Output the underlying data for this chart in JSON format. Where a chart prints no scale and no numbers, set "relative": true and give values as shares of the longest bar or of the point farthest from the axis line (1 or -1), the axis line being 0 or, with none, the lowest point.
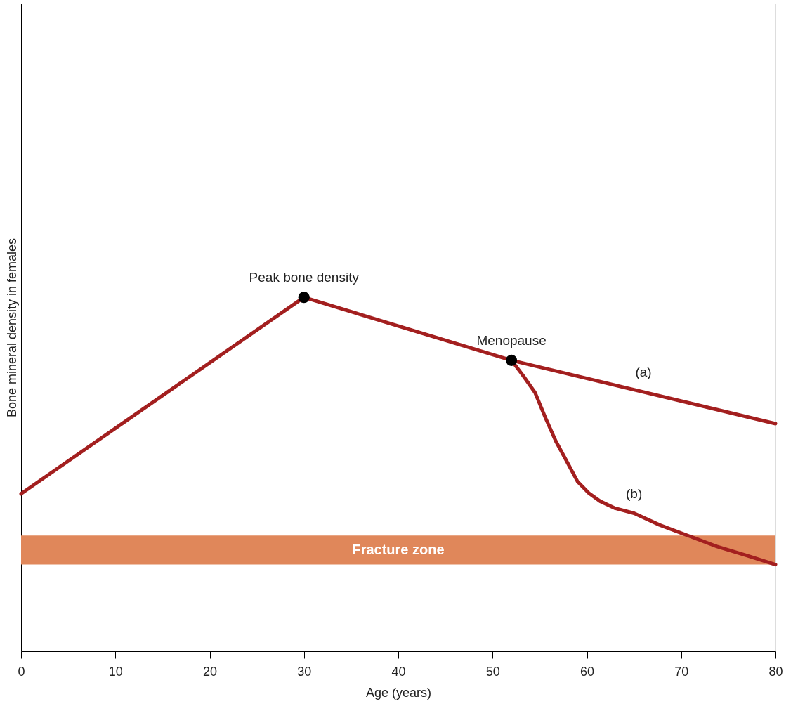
{
  "chart_data": {
    "type": "line",
    "xlabel": "Age (years)",
    "ylabel": "Bone mineral density in females",
    "relative": true,
    "xlim": [
      0,
      80
    ],
    "xticks": [
      0,
      10,
      20,
      30,
      40,
      50,
      60,
      70,
      80
    ],
    "tick_labels": "x",
    "grid": false,
    "line_style": "solid",
    "series": [
      {
        "color": "#a31f1f",
        "x": [
          0,
          30,
          52,
          80
        ],
        "values": [
          0.445,
          1,
          0.822,
          0.643
        ]
      },
      {
        "color": "#a31f1f",
        "x": [
          52,
          53.2,
          54.5,
          55.6,
          56.7,
          58,
          59,
          60.2,
          61.4,
          63,
          65,
          67.7,
          70.8,
          73.8,
          77,
          80
        ],
        "values": [
          0.822,
          0.78,
          0.731,
          0.66,
          0.594,
          0.53,
          0.48,
          0.447,
          0.424,
          0.404,
          0.39,
          0.357,
          0.326,
          0.296,
          0.27,
          0.245
        ]
      },
      {
        "type": "scatter",
        "marker": "circle",
        "color": "#000000",
        "x": [
          30,
          52
        ],
        "values": [
          1,
          0.822
        ]
      }
    ],
    "bands": [
      {
        "axis": "y",
        "from": 0.245,
        "to": 0.327,
        "label": "Fracture zone",
        "color": "#e0875a"
      }
    ],
    "annotations": [
      {
        "text": "Peak bone density",
        "x": 30,
        "y": 1
      },
      {
        "text": "Menopause",
        "x": 52,
        "y": 0.822
      },
      {
        "text": "(a)",
        "x": 66,
        "y": 0.732
      },
      {
        "text": "(b)",
        "x": 65,
        "y": 0.39
      }
    ]
  }
}
